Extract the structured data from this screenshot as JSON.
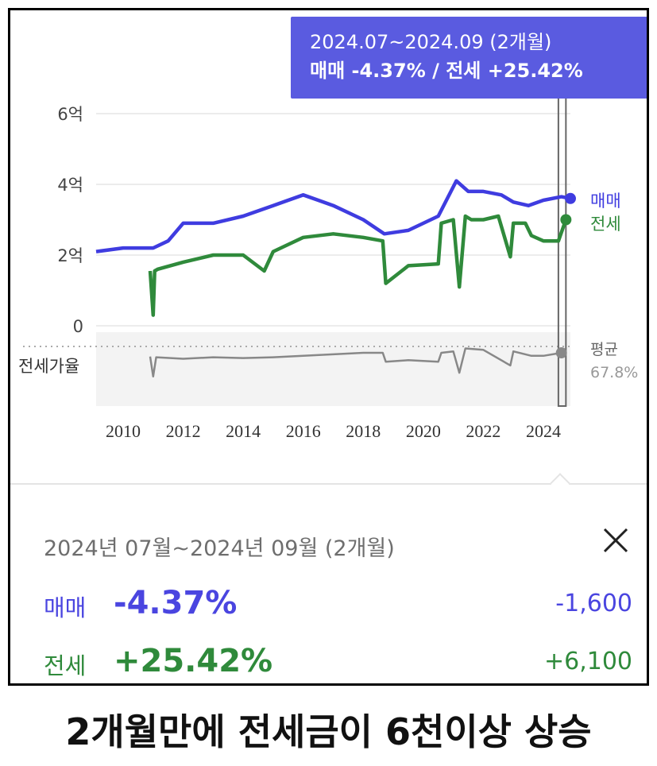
{
  "tooltip": {
    "line1": "2024.07~2024.09 (2개월)",
    "line2": "매매 -4.37%  /  전세 +25.42%"
  },
  "legend": {
    "sale": "매매",
    "jeonse": "전세",
    "ratio_avg_label": "평균",
    "ratio_avg_value": "67.8%",
    "ratio_label": "전세가율"
  },
  "panel": {
    "period": "2024년 07월~2024년 09월 (2개월)",
    "close_icon": "close-icon",
    "sale_label": "매매",
    "sale_pct": "-4.37%",
    "sale_amount": "-1,600",
    "jeonse_label": "전세",
    "jeonse_pct": "+25.42%",
    "jeonse_amount": "+6,100"
  },
  "caption": "2개월만에 전세금이 6천이상 상승",
  "colors": {
    "sale": "#3f3ce0",
    "jeonse": "#2f8a3b",
    "ratio": "#888888",
    "tooltip_bg": "#5a5be0"
  },
  "chart_data": {
    "type": "line",
    "yticks": [
      "6억",
      "4억",
      "2억",
      "0"
    ],
    "ytick_values": [
      6,
      4,
      2,
      0
    ],
    "xticks": [
      "2010",
      "2012",
      "2014",
      "2016",
      "2018",
      "2020",
      "2022",
      "2024"
    ],
    "xtick_values": [
      2010,
      2012,
      2014,
      2016,
      2018,
      2020,
      2022,
      2024
    ],
    "xlim": [
      2009.1,
      2024.9
    ],
    "ylim": [
      0,
      6
    ],
    "y_unit": "억",
    "grid": true,
    "highlight_period": [
      2024.5,
      2024.75
    ],
    "series": [
      {
        "name": "매매",
        "color": "#3f3ce0",
        "x": [
          2009.1,
          2010,
          2011,
          2011.5,
          2012,
          2013,
          2014,
          2015,
          2016,
          2017,
          2018,
          2018.7,
          2019.5,
          2020.5,
          2021.1,
          2021.5,
          2022,
          2022.6,
          2023,
          2023.5,
          2024,
          2024.6,
          2024.9
        ],
        "y": [
          2.1,
          2.2,
          2.2,
          2.4,
          2.9,
          2.9,
          3.1,
          3.4,
          3.7,
          3.4,
          3.0,
          2.6,
          2.7,
          3.1,
          4.1,
          3.8,
          3.8,
          3.7,
          3.5,
          3.4,
          3.55,
          3.65,
          3.6
        ]
      },
      {
        "name": "전세",
        "color": "#2f8a3b",
        "x": [
          2010.9,
          2011.0,
          2011.05,
          2011.15,
          2012,
          2013,
          2014,
          2014.7,
          2015,
          2016,
          2017,
          2018,
          2018.65,
          2018.75,
          2019.5,
          2020.5,
          2020.6,
          2021.0,
          2021.2,
          2021.4,
          2021.6,
          2022,
          2022.5,
          2022.9,
          2023.0,
          2023.4,
          2023.6,
          2024,
          2024.5,
          2024.75
        ],
        "y": [
          1.55,
          0.3,
          1.55,
          1.6,
          1.8,
          2.0,
          2.0,
          1.55,
          2.1,
          2.5,
          2.6,
          2.5,
          2.4,
          1.2,
          1.7,
          1.75,
          2.9,
          3.0,
          1.1,
          3.1,
          3.0,
          3.0,
          3.1,
          1.95,
          2.9,
          2.9,
          2.55,
          2.4,
          2.4,
          3.0
        ]
      },
      {
        "name": "전세가율",
        "color": "#888888",
        "x": [
          2010.9,
          2011.0,
          2011.1,
          2012,
          2013,
          2014,
          2015,
          2016,
          2017,
          2018,
          2018.65,
          2018.75,
          2019.5,
          2020.5,
          2020.6,
          2021.0,
          2021.2,
          2021.4,
          2022,
          2022.9,
          2023.0,
          2023.6,
          2024,
          2024.6
        ],
        "y": [
          0.67,
          0.4,
          0.66,
          0.64,
          0.66,
          0.65,
          0.66,
          0.68,
          0.7,
          0.72,
          0.72,
          0.6,
          0.62,
          0.6,
          0.72,
          0.74,
          0.45,
          0.78,
          0.76,
          0.55,
          0.74,
          0.68,
          0.68,
          0.72
        ]
      }
    ]
  }
}
